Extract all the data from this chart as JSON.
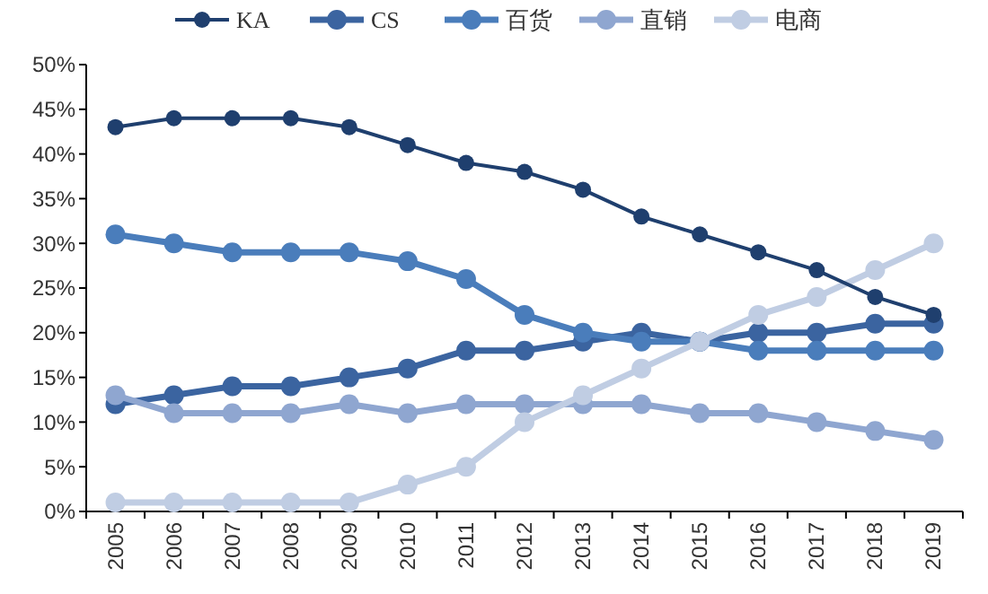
{
  "chart_data": {
    "type": "line",
    "categories": [
      "2005",
      "2006",
      "2007",
      "2008",
      "2009",
      "2010",
      "2011",
      "2012",
      "2013",
      "2014",
      "2015",
      "2016",
      "2017",
      "2018",
      "2019"
    ],
    "series": [
      {
        "name": "KA",
        "color": "#1f3f6e",
        "values": [
          43,
          44,
          44,
          44,
          43,
          41,
          39,
          38,
          36,
          33,
          31,
          29,
          27,
          24,
          22
        ]
      },
      {
        "name": "CS",
        "color": "#3b64a0",
        "values": [
          12,
          13,
          14,
          14,
          15,
          16,
          18,
          18,
          19,
          20,
          19,
          20,
          20,
          21,
          21
        ]
      },
      {
        "name": "百货",
        "color": "#4a7dbb",
        "values": [
          31,
          30,
          29,
          29,
          29,
          28,
          26,
          22,
          20,
          19,
          19,
          18,
          18,
          18,
          18
        ]
      },
      {
        "name": "直销",
        "color": "#8fa6d0",
        "values": [
          13,
          11,
          11,
          11,
          12,
          11,
          12,
          12,
          12,
          12,
          11,
          11,
          10,
          9,
          8
        ]
      },
      {
        "name": "电商",
        "color": "#c0cde3",
        "values": [
          1,
          1,
          1,
          1,
          1,
          3,
          5,
          10,
          13,
          16,
          19,
          22,
          24,
          27,
          30
        ]
      }
    ],
    "ylim": [
      0,
      50
    ],
    "yticks": [
      {
        "value": 0,
        "label": "0%"
      },
      {
        "value": 5,
        "label": "5%"
      },
      {
        "value": 10,
        "label": "10%"
      },
      {
        "value": 15,
        "label": "15%"
      },
      {
        "value": 20,
        "label": "20%"
      },
      {
        "value": 25,
        "label": "25%"
      },
      {
        "value": 30,
        "label": "30%"
      },
      {
        "value": 35,
        "label": "35%"
      },
      {
        "value": 40,
        "label": "40%"
      },
      {
        "value": 45,
        "label": "45%"
      },
      {
        "value": 50,
        "label": "50%"
      }
    ],
    "grid": false,
    "legend": "top",
    "marker": "circle",
    "line_style": "solid"
  }
}
